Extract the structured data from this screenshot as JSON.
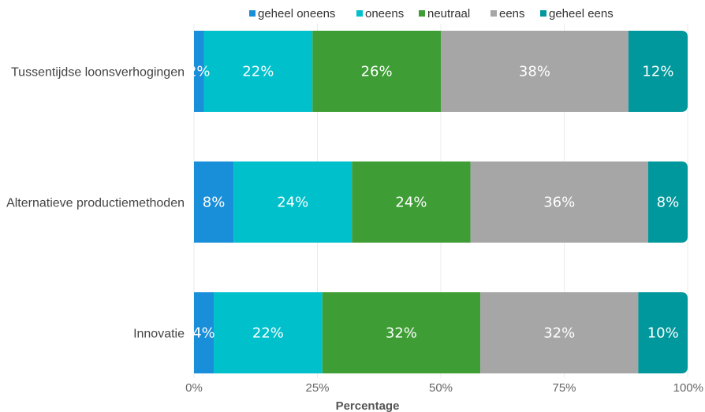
{
  "chart_data": {
    "type": "bar",
    "orientation": "horizontal",
    "stacked": true,
    "categories": [
      "Tussentijdse loonsverhogingen",
      "Alternatieve productiemethoden",
      "Innovatie"
    ],
    "series": [
      {
        "name": "geheel oneens",
        "color": "#1a8fd9",
        "values": [
          2,
          8,
          4
        ]
      },
      {
        "name": "oneens",
        "color": "#00c0cc",
        "values": [
          22,
          24,
          22
        ]
      },
      {
        "name": "neutraal",
        "color": "#3e9e35",
        "values": [
          26,
          24,
          32
        ]
      },
      {
        "name": "eens",
        "color": "#a6a6a6",
        "values": [
          38,
          36,
          32
        ]
      },
      {
        "name": "geheel eens",
        "color": "#00989c",
        "values": [
          12,
          8,
          10
        ]
      }
    ],
    "xlim": [
      0,
      100
    ],
    "xticks": [
      0,
      25,
      50,
      75,
      100
    ],
    "xtick_labels": [
      "0%",
      "25%",
      "50%",
      "75%",
      "100%"
    ],
    "xlabel": "Percentage",
    "ylabel": "",
    "label_suffix": "%",
    "legend_position": "top",
    "grid": true
  }
}
